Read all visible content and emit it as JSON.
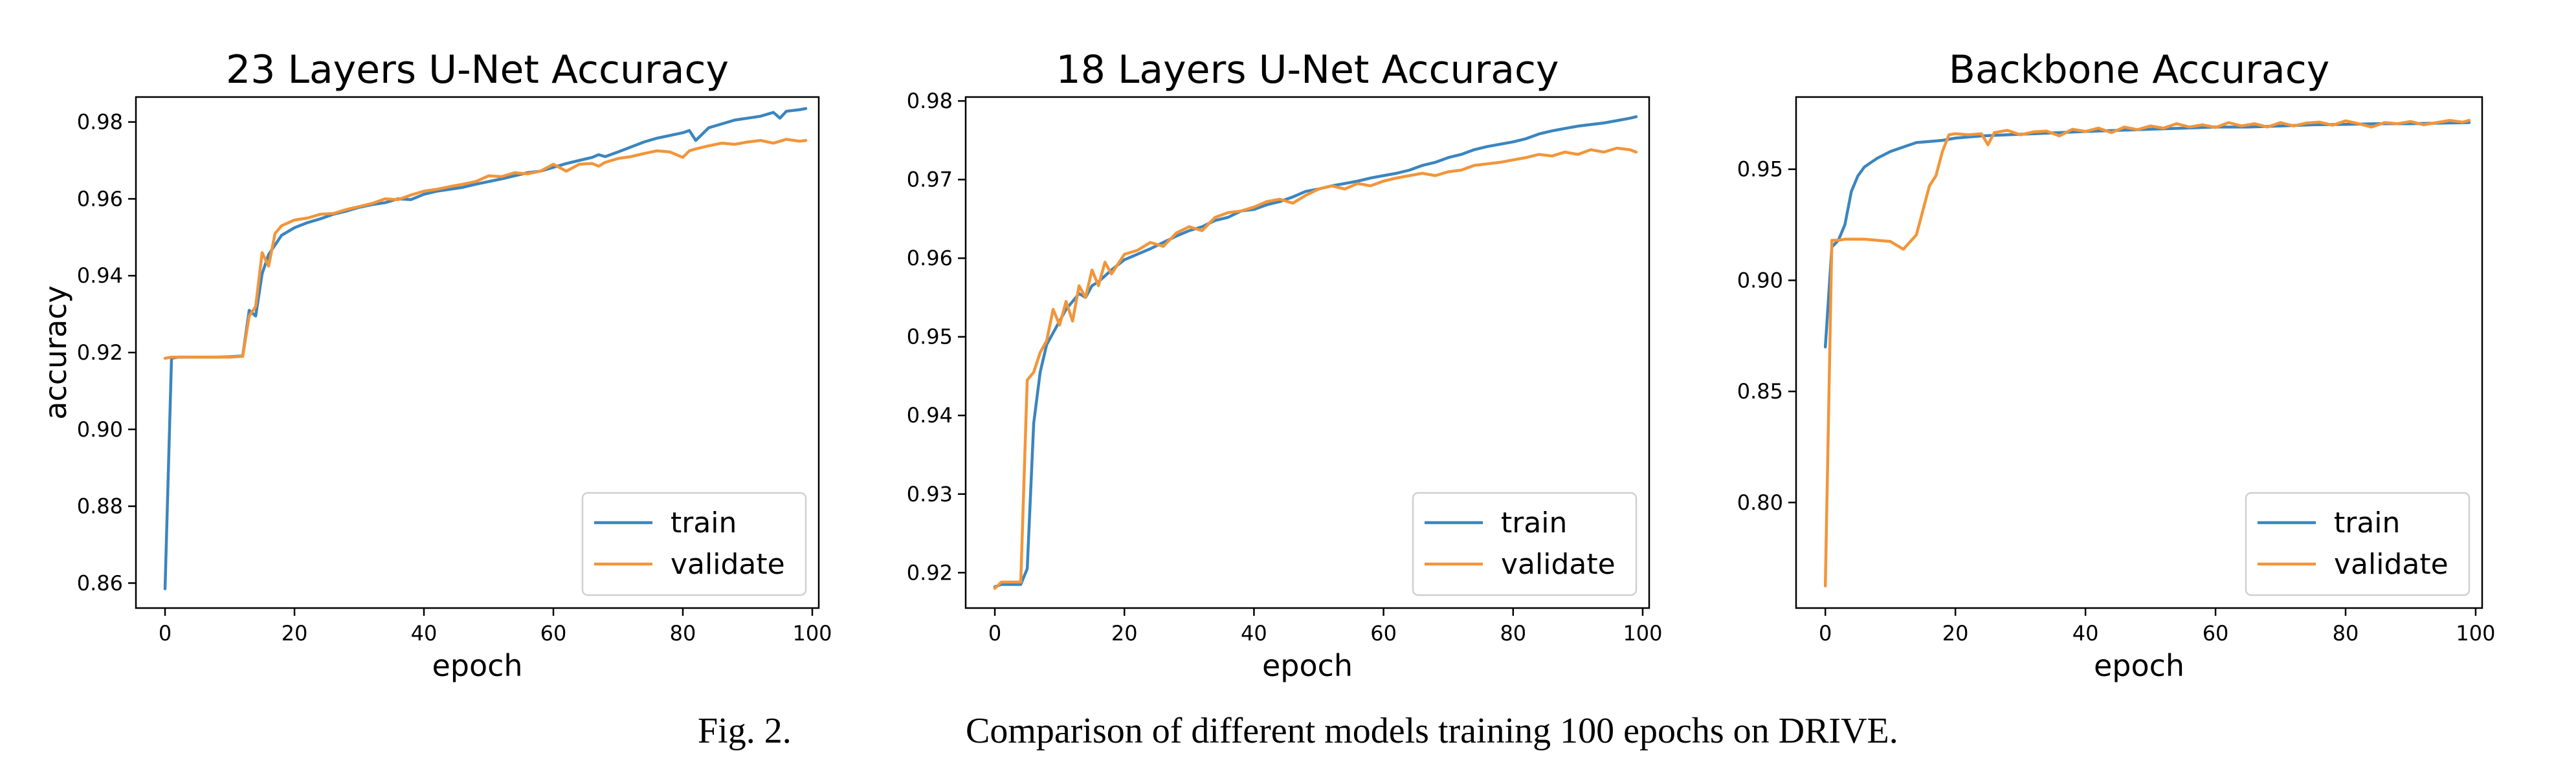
{
  "colors": {
    "train": "#3a85bf",
    "validate": "#f2953a"
  },
  "caption": {
    "label": "Fig. 2.",
    "text": "Comparison of different models training 100 epochs on DRIVE."
  },
  "chart_data": [
    {
      "type": "line",
      "title": "23 Layers U-Net Accuracy",
      "xlabel": "epoch",
      "ylabel": "accuracy",
      "xlim": [
        -4.5,
        101
      ],
      "ylim": [
        0.8535,
        0.9865
      ],
      "xticks": [
        0,
        20,
        40,
        60,
        80,
        100
      ],
      "yticks": [
        0.86,
        0.88,
        0.9,
        0.92,
        0.94,
        0.96,
        0.98
      ],
      "ytick_decimals": 2,
      "grid": false,
      "legend": "lower-right",
      "series": [
        {
          "name": "train",
          "x": [
            0,
            1,
            2,
            4,
            6,
            8,
            10,
            12,
            13,
            14,
            15,
            16,
            17,
            18,
            20,
            22,
            24,
            26,
            28,
            30,
            32,
            34,
            36,
            38,
            40,
            42,
            44,
            46,
            48,
            50,
            52,
            54,
            56,
            58,
            60,
            62,
            64,
            66,
            67,
            68,
            70,
            72,
            74,
            76,
            78,
            80,
            81,
            82,
            84,
            86,
            88,
            90,
            92,
            93,
            94,
            95,
            96,
            97,
            98,
            99
          ],
          "y": [
            0.8585,
            0.9185,
            0.9188,
            0.9188,
            0.9188,
            0.9188,
            0.9189,
            0.9191,
            0.931,
            0.9295,
            0.9405,
            0.9455,
            0.948,
            0.9505,
            0.9525,
            0.9538,
            0.9548,
            0.956,
            0.9568,
            0.9578,
            0.9585,
            0.959,
            0.96,
            0.9598,
            0.9612,
            0.962,
            0.9625,
            0.963,
            0.9638,
            0.9645,
            0.9652,
            0.966,
            0.9668,
            0.9672,
            0.9682,
            0.9692,
            0.97,
            0.9708,
            0.9715,
            0.971,
            0.9722,
            0.9735,
            0.9748,
            0.9758,
            0.9765,
            0.9772,
            0.9778,
            0.9752,
            0.9785,
            0.9795,
            0.9805,
            0.981,
            0.9815,
            0.982,
            0.9825,
            0.981,
            0.9828,
            0.983,
            0.9832,
            0.9835
          ]
        },
        {
          "name": "validate",
          "x": [
            0,
            1,
            2,
            4,
            6,
            8,
            10,
            12,
            13,
            14,
            15,
            16,
            17,
            18,
            20,
            22,
            24,
            26,
            28,
            30,
            32,
            34,
            36,
            38,
            40,
            42,
            44,
            46,
            48,
            50,
            52,
            54,
            56,
            58,
            60,
            62,
            64,
            66,
            67,
            68,
            70,
            72,
            74,
            76,
            78,
            80,
            81,
            82,
            84,
            86,
            88,
            90,
            92,
            94,
            96,
            98,
            99
          ],
          "y": [
            0.9185,
            0.9188,
            0.9188,
            0.9188,
            0.9188,
            0.9188,
            0.9188,
            0.919,
            0.9295,
            0.932,
            0.946,
            0.9425,
            0.951,
            0.953,
            0.9545,
            0.955,
            0.956,
            0.9562,
            0.9572,
            0.958,
            0.9588,
            0.96,
            0.9598,
            0.961,
            0.962,
            0.9625,
            0.9632,
            0.9638,
            0.9645,
            0.966,
            0.9658,
            0.9668,
            0.9665,
            0.9672,
            0.969,
            0.9672,
            0.969,
            0.9692,
            0.9685,
            0.9695,
            0.9705,
            0.971,
            0.9718,
            0.9725,
            0.9722,
            0.9708,
            0.9725,
            0.973,
            0.9738,
            0.9745,
            0.9742,
            0.9748,
            0.9752,
            0.9745,
            0.9755,
            0.975,
            0.9752
          ]
        }
      ]
    },
    {
      "type": "line",
      "title": "18 Layers U-Net Accuracy",
      "xlabel": "epoch",
      "ylabel": "",
      "xlim": [
        -4.5,
        101
      ],
      "ylim": [
        0.9155,
        0.9805
      ],
      "xticks": [
        0,
        20,
        40,
        60,
        80,
        100
      ],
      "yticks": [
        0.92,
        0.93,
        0.94,
        0.95,
        0.96,
        0.97,
        0.98
      ],
      "ytick_decimals": 2,
      "grid": false,
      "legend": "lower-right",
      "series": [
        {
          "name": "train",
          "x": [
            0,
            1,
            2,
            3,
            4,
            5,
            6,
            7,
            8,
            9,
            10,
            11,
            12,
            13,
            14,
            15,
            16,
            18,
            20,
            22,
            24,
            26,
            28,
            30,
            32,
            34,
            36,
            38,
            40,
            42,
            44,
            46,
            48,
            50,
            52,
            54,
            56,
            58,
            60,
            62,
            64,
            66,
            68,
            70,
            72,
            74,
            76,
            78,
            80,
            82,
            84,
            86,
            88,
            90,
            92,
            94,
            96,
            98,
            99
          ],
          "y": [
            0.9182,
            0.9185,
            0.9185,
            0.9185,
            0.9185,
            0.9205,
            0.939,
            0.9455,
            0.949,
            0.9505,
            0.952,
            0.9535,
            0.9545,
            0.9555,
            0.955,
            0.9565,
            0.957,
            0.9585,
            0.9598,
            0.9605,
            0.9612,
            0.962,
            0.9628,
            0.9635,
            0.964,
            0.9648,
            0.9652,
            0.966,
            0.9662,
            0.9668,
            0.9672,
            0.9678,
            0.9685,
            0.9688,
            0.9692,
            0.9695,
            0.9698,
            0.9702,
            0.9705,
            0.9708,
            0.9712,
            0.9718,
            0.9722,
            0.9728,
            0.9732,
            0.9738,
            0.9742,
            0.9745,
            0.9748,
            0.9752,
            0.9758,
            0.9762,
            0.9765,
            0.9768,
            0.977,
            0.9772,
            0.9775,
            0.9778,
            0.978
          ]
        },
        {
          "name": "validate",
          "x": [
            0,
            1,
            2,
            3,
            4,
            5,
            6,
            7,
            8,
            9,
            10,
            11,
            12,
            13,
            14,
            15,
            16,
            17,
            18,
            20,
            22,
            24,
            26,
            28,
            30,
            32,
            34,
            36,
            38,
            40,
            42,
            44,
            46,
            48,
            50,
            52,
            54,
            56,
            58,
            60,
            62,
            64,
            66,
            68,
            70,
            72,
            74,
            76,
            78,
            80,
            82,
            84,
            86,
            88,
            90,
            92,
            94,
            96,
            98,
            99
          ],
          "y": [
            0.918,
            0.9188,
            0.9188,
            0.9188,
            0.9188,
            0.9445,
            0.9455,
            0.948,
            0.9495,
            0.9535,
            0.9515,
            0.9545,
            0.952,
            0.9565,
            0.955,
            0.9585,
            0.9565,
            0.9595,
            0.958,
            0.9605,
            0.961,
            0.962,
            0.9615,
            0.9632,
            0.964,
            0.9635,
            0.9652,
            0.9658,
            0.966,
            0.9665,
            0.9672,
            0.9675,
            0.967,
            0.968,
            0.9688,
            0.9692,
            0.9688,
            0.9695,
            0.9692,
            0.9698,
            0.9702,
            0.9705,
            0.9708,
            0.9705,
            0.971,
            0.9712,
            0.9718,
            0.972,
            0.9722,
            0.9725,
            0.9728,
            0.9732,
            0.973,
            0.9735,
            0.9732,
            0.9738,
            0.9735,
            0.974,
            0.9738,
            0.9735
          ]
        }
      ]
    },
    {
      "type": "line",
      "title": "Backbone Accuracy",
      "xlabel": "epoch",
      "ylabel": "",
      "xlim": [
        -4.5,
        101
      ],
      "ylim": [
        0.7525,
        0.9825
      ],
      "xticks": [
        0,
        20,
        40,
        60,
        80,
        100
      ],
      "yticks": [
        0.8,
        0.85,
        0.9,
        0.95
      ],
      "ytick_decimals": 2,
      "grid": false,
      "legend": "lower-right",
      "series": [
        {
          "name": "train",
          "x": [
            0,
            1,
            2,
            3,
            4,
            5,
            6,
            7,
            8,
            10,
            12,
            14,
            16,
            18,
            20,
            24,
            28,
            32,
            36,
            40,
            45,
            50,
            55,
            60,
            65,
            70,
            75,
            80,
            85,
            90,
            95,
            99
          ],
          "y": [
            0.87,
            0.915,
            0.918,
            0.925,
            0.94,
            0.947,
            0.951,
            0.953,
            0.955,
            0.958,
            0.96,
            0.962,
            0.9625,
            0.963,
            0.964,
            0.965,
            0.9655,
            0.966,
            0.9665,
            0.967,
            0.9675,
            0.968,
            0.9685,
            0.969,
            0.969,
            0.9695,
            0.97,
            0.9702,
            0.9705,
            0.9705,
            0.9708,
            0.971
          ]
        },
        {
          "name": "validate",
          "x": [
            0,
            1,
            2,
            3,
            4,
            5,
            6,
            8,
            10,
            12,
            14,
            16,
            17,
            18,
            19,
            20,
            22,
            24,
            25,
            26,
            28,
            30,
            32,
            34,
            36,
            38,
            40,
            42,
            44,
            46,
            48,
            50,
            52,
            54,
            56,
            58,
            60,
            62,
            64,
            66,
            68,
            70,
            72,
            74,
            76,
            78,
            80,
            82,
            84,
            86,
            88,
            90,
            92,
            94,
            96,
            98,
            99
          ],
          "y": [
            0.7625,
            0.918,
            0.918,
            0.9185,
            0.9185,
            0.9185,
            0.9185,
            0.918,
            0.9175,
            0.914,
            0.9205,
            0.9425,
            0.947,
            0.958,
            0.9655,
            0.966,
            0.9655,
            0.966,
            0.961,
            0.9665,
            0.9675,
            0.9655,
            0.9668,
            0.9672,
            0.965,
            0.968,
            0.967,
            0.9685,
            0.9665,
            0.969,
            0.9678,
            0.9695,
            0.9685,
            0.9705,
            0.969,
            0.97,
            0.9688,
            0.971,
            0.9695,
            0.9705,
            0.969,
            0.971,
            0.9695,
            0.9708,
            0.9712,
            0.9698,
            0.9718,
            0.9705,
            0.969,
            0.971,
            0.9705,
            0.9715,
            0.97,
            0.971,
            0.972,
            0.9712,
            0.972
          ]
        }
      ]
    }
  ]
}
